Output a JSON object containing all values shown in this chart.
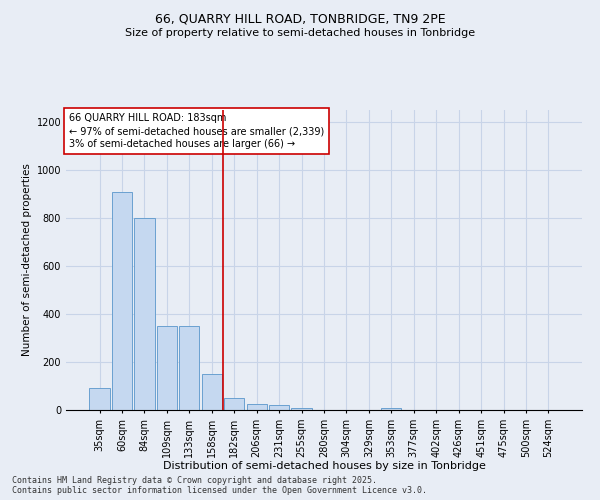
{
  "title1": "66, QUARRY HILL ROAD, TONBRIDGE, TN9 2PE",
  "title2": "Size of property relative to semi-detached houses in Tonbridge",
  "xlabel": "Distribution of semi-detached houses by size in Tonbridge",
  "ylabel": "Number of semi-detached properties",
  "categories": [
    "35sqm",
    "60sqm",
    "84sqm",
    "109sqm",
    "133sqm",
    "158sqm",
    "182sqm",
    "206sqm",
    "231sqm",
    "255sqm",
    "280sqm",
    "304sqm",
    "329sqm",
    "353sqm",
    "377sqm",
    "402sqm",
    "426sqm",
    "451sqm",
    "475sqm",
    "500sqm",
    "524sqm"
  ],
  "values": [
    90,
    910,
    800,
    350,
    350,
    150,
    50,
    25,
    20,
    10,
    0,
    0,
    0,
    10,
    0,
    0,
    0,
    0,
    0,
    0,
    0
  ],
  "bar_color": "#c5d8f0",
  "bar_edge_color": "#6aa0d0",
  "vline_color": "#cc0000",
  "vline_x_index": 6,
  "annotation_text": "66 QUARRY HILL ROAD: 183sqm\n← 97% of semi-detached houses are smaller (2,339)\n3% of semi-detached houses are larger (66) →",
  "annotation_edge_color": "#cc0000",
  "ylim": [
    0,
    1250
  ],
  "yticks": [
    0,
    200,
    400,
    600,
    800,
    1000,
    1200
  ],
  "bg_color": "#e8edf5",
  "grid_color": "#c8d4e8",
  "footer": "Contains HM Land Registry data © Crown copyright and database right 2025.\nContains public sector information licensed under the Open Government Licence v3.0.",
  "title1_fontsize": 9,
  "title2_fontsize": 8,
  "xlabel_fontsize": 8,
  "ylabel_fontsize": 7.5,
  "tick_fontsize": 7,
  "annotation_fontsize": 7,
  "footer_fontsize": 6
}
